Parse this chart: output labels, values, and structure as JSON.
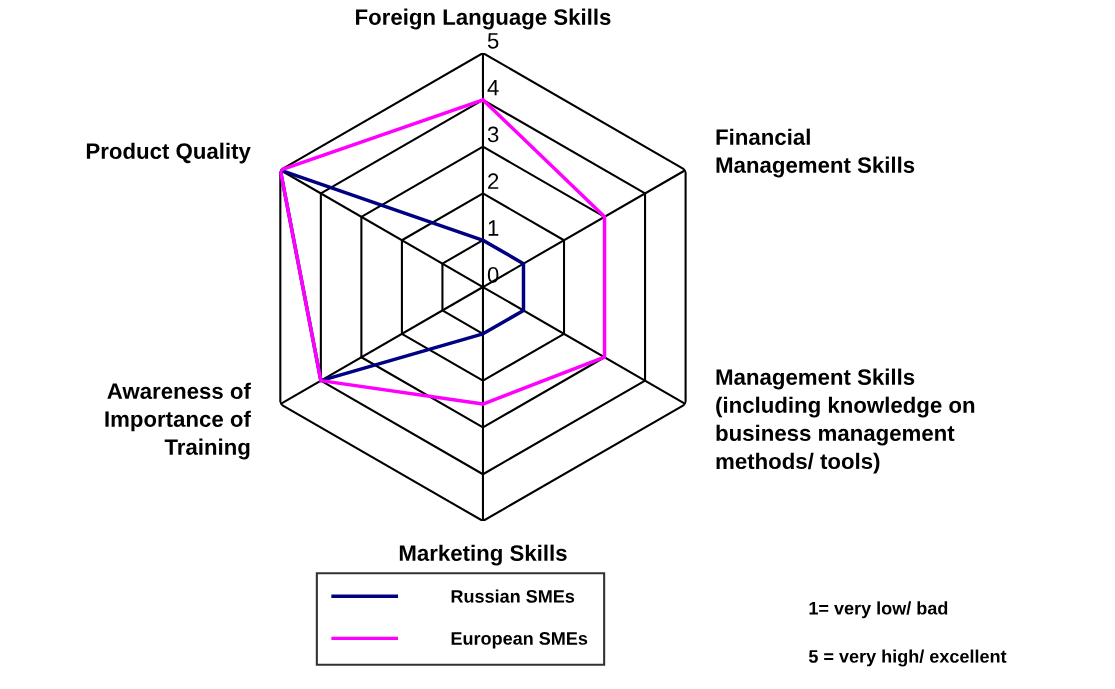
{
  "chart_data": {
    "type": "radar",
    "categories": [
      "Foreign Language Skills",
      "Financial\nManagement Skills",
      "Management Skills\n(including knowledge on\nbusiness management\nmethods/ tools)",
      "Marketing Skills",
      "Awareness of\nImportance of\nTraining",
      "Product Quality"
    ],
    "series": [
      {
        "name": "Russian SMEs",
        "color": "#000080",
        "values": [
          1,
          1,
          1,
          1,
          4,
          5
        ]
      },
      {
        "name": "European SMEs",
        "color": "#ff00ff",
        "values": [
          4,
          3,
          3,
          2.5,
          4,
          5
        ]
      }
    ],
    "ylim": [
      0,
      5
    ],
    "yticks": [
      0,
      1,
      2,
      3,
      4,
      5
    ],
    "legend": "bottom",
    "annotations": [
      "1= very low/ bad",
      "5 = very high/ excellent"
    ]
  }
}
